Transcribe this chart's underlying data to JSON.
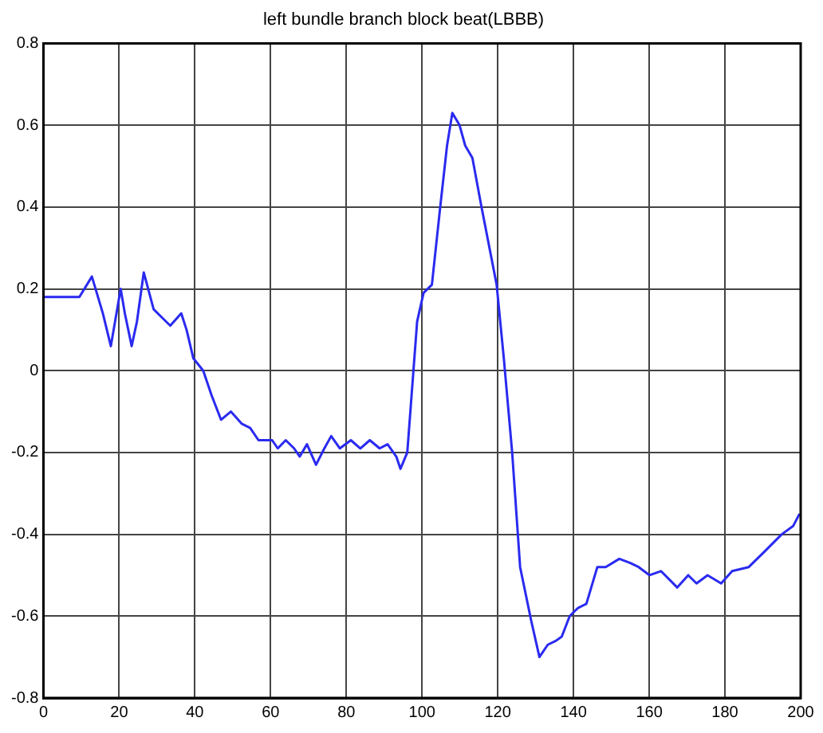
{
  "chart_data": {
    "type": "line",
    "title": "left bundle branch block beat(LBBB)",
    "x": [
      0,
      9.5,
      12.8,
      15.7,
      17.8,
      20.4,
      21.5,
      23.3,
      24.7,
      26.5,
      29.1,
      31.3,
      33.5,
      36.4,
      37.8,
      39.6,
      42.2,
      44.4,
      46.9,
      49.5,
      52.4,
      54.6,
      56.8,
      60.4,
      61.9,
      64,
      66.2,
      67.7,
      69.6,
      72,
      74.2,
      76,
      78.3,
      81.2,
      83.7,
      86.2,
      88.8,
      90.9,
      93.2,
      94.3,
      96.1,
      98.7,
      100.4,
      102.6,
      104.8,
      106.6,
      108,
      109.9,
      111.4,
      113.3,
      115.7,
      119.7,
      121.6,
      123.8,
      125.9,
      128.8,
      131,
      133.2,
      135.4,
      136.9,
      139,
      141.2,
      143.4,
      146.3,
      148.5,
      152.1,
      155,
      157.2,
      160.1,
      163.1,
      167.4,
      170.3,
      172.5,
      175.4,
      179,
      181.9,
      186.3,
      190.7,
      195,
      198,
      199.7
    ],
    "series": [
      {
        "color": "#2a2af0",
        "values": [
          0.18,
          0.18,
          0.23,
          0.14,
          0.06,
          0.2,
          0.14,
          0.06,
          0.12,
          0.24,
          0.15,
          0.13,
          0.11,
          0.14,
          0.1,
          0.03,
          0,
          -0.06,
          -0.12,
          -0.1,
          -0.13,
          -0.14,
          -0.17,
          -0.17,
          -0.19,
          -0.17,
          -0.19,
          -0.21,
          -0.18,
          -0.23,
          -0.19,
          -0.16,
          -0.19,
          -0.17,
          -0.19,
          -0.17,
          -0.19,
          -0.18,
          -0.21,
          -0.24,
          -0.2,
          0.12,
          0.19,
          0.21,
          0.4,
          0.55,
          0.63,
          0.6,
          0.55,
          0.52,
          0.4,
          0.21,
          0.03,
          -0.2,
          -0.48,
          -0.61,
          -0.7,
          -0.67,
          -0.66,
          -0.65,
          -0.6,
          -0.58,
          -0.57,
          -0.48,
          -0.48,
          -0.46,
          -0.47,
          -0.48,
          -0.5,
          -0.49,
          -0.53,
          -0.5,
          -0.52,
          -0.5,
          -0.52,
          -0.49,
          -0.48,
          -0.44,
          -0.4,
          -0.38,
          -0.35
        ]
      }
    ],
    "xlim": [
      0,
      200
    ],
    "xticks": [
      0,
      20,
      40,
      60,
      80,
      100,
      120,
      140,
      160,
      180,
      200
    ],
    "ylim": [
      -0.8,
      0.8
    ],
    "yticks": [
      -0.8,
      -0.6,
      -0.4,
      -0.2,
      0,
      0.2,
      0.4,
      0.6,
      0.8
    ],
    "grid": true,
    "legend": false,
    "marker": "none",
    "line_style": "solid"
  }
}
